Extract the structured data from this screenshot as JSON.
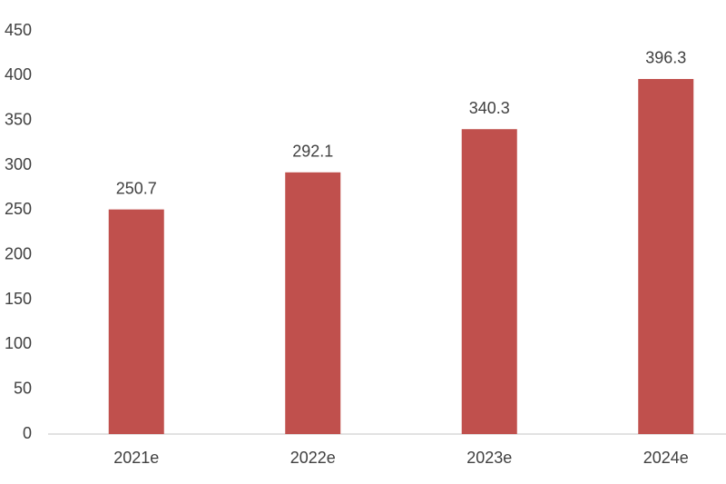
{
  "chart_data": {
    "type": "bar",
    "categories": [
      "2021e",
      "2022e",
      "2023e",
      "2024e"
    ],
    "values": [
      250.7,
      292.1,
      340.3,
      396.3
    ],
    "color": "#c0504d",
    "ylim": [
      0,
      450
    ],
    "yticks": [
      0,
      50,
      100,
      150,
      200,
      250,
      300,
      350,
      400,
      450
    ],
    "grid": false
  }
}
